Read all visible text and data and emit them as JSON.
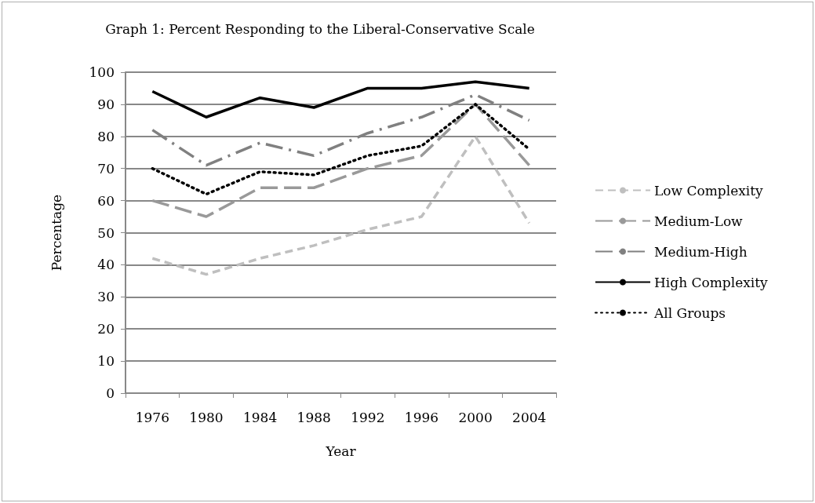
{
  "chart_data": {
    "type": "line",
    "title": "Graph 1: Percent Responding to the Liberal-Conservative Scale",
    "xlabel": "Year",
    "ylabel": "Percentage",
    "categories": [
      "1976",
      "1980",
      "1984",
      "1988",
      "1992",
      "1996",
      "2000",
      "2004"
    ],
    "series": [
      {
        "name": "Low Complexity",
        "color": "#bfbfbf",
        "line_style": "dashed",
        "values": [
          42,
          37,
          42,
          46,
          51,
          55,
          80,
          53
        ]
      },
      {
        "name": "Medium-Low",
        "color": "#999999",
        "line_style": "dashed",
        "values": [
          60,
          55,
          64,
          64,
          70,
          74,
          90,
          71
        ]
      },
      {
        "name": "Medium-High",
        "color": "#808080",
        "line_style": "dashed",
        "values": [
          82,
          71,
          78,
          74,
          81,
          86,
          93,
          85
        ]
      },
      {
        "name": "High Complexity",
        "color": "#000000",
        "line_style": "solid",
        "values": [
          94,
          86,
          92,
          89,
          95,
          95,
          97,
          95
        ]
      },
      {
        "name": "All Groups",
        "color": "#000000",
        "line_style": "dotted",
        "values": [
          70,
          62,
          69,
          68,
          74,
          77,
          90,
          76
        ]
      }
    ],
    "ylim": [
      0,
      100
    ],
    "yticks": [
      0,
      10,
      20,
      30,
      40,
      50,
      60,
      70,
      80,
      90,
      100
    ],
    "grid": "y",
    "legend": "right",
    "marker": "none"
  }
}
